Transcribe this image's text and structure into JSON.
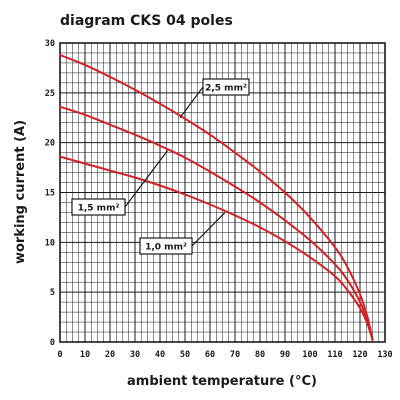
{
  "chart_data": {
    "type": "line",
    "title": "diagram CKS 04 poles",
    "xlabel": "ambient temperature (°C)",
    "ylabel": "working current (A)",
    "xlim": [
      0,
      130
    ],
    "ylim": [
      0,
      30
    ],
    "x_ticks": [
      "0",
      "10",
      "20",
      "30",
      "40",
      "50",
      "60",
      "70",
      "80",
      "90",
      "100",
      "110",
      "120",
      "130"
    ],
    "y_ticks": [
      "0",
      "5",
      "10",
      "15",
      "20",
      "25",
      "30"
    ],
    "grid": true,
    "line_color": "#d42027",
    "series": [
      {
        "name": "2,5 mm²",
        "x": [
          0,
          10,
          20,
          30,
          40,
          50,
          60,
          70,
          80,
          90,
          100,
          110,
          115,
          120,
          123,
          125
        ],
        "y": [
          28.8,
          27.8,
          26.6,
          25.3,
          23.9,
          22.4,
          20.8,
          19.0,
          17.1,
          15.0,
          12.5,
          9.5,
          7.5,
          4.8,
          2.5,
          0.2
        ]
      },
      {
        "name": "1,5 mm²",
        "x": [
          0,
          10,
          20,
          30,
          40,
          50,
          60,
          70,
          80,
          90,
          100,
          110,
          115,
          120,
          123,
          125
        ],
        "y": [
          23.6,
          22.8,
          21.8,
          20.8,
          19.7,
          18.5,
          17.1,
          15.6,
          14.0,
          12.2,
          10.2,
          7.8,
          6.2,
          4.0,
          2.1,
          0.2
        ]
      },
      {
        "name": "1,0 mm²",
        "x": [
          0,
          10,
          20,
          30,
          40,
          50,
          60,
          70,
          80,
          90,
          100,
          110,
          115,
          120,
          123,
          125
        ],
        "y": [
          18.6,
          17.9,
          17.2,
          16.5,
          15.7,
          14.8,
          13.8,
          12.7,
          11.5,
          10.1,
          8.5,
          6.6,
          5.2,
          3.4,
          1.8,
          0.2
        ]
      }
    ],
    "annotations": [
      {
        "label": "2,5 mm²",
        "target_x": 48,
        "target_y": 22.5
      },
      {
        "label": "1,5 mm²",
        "target_x": 43,
        "target_y": 19.2
      },
      {
        "label": "1,0 mm²",
        "target_x": 66,
        "target_y": 13.0
      }
    ]
  }
}
